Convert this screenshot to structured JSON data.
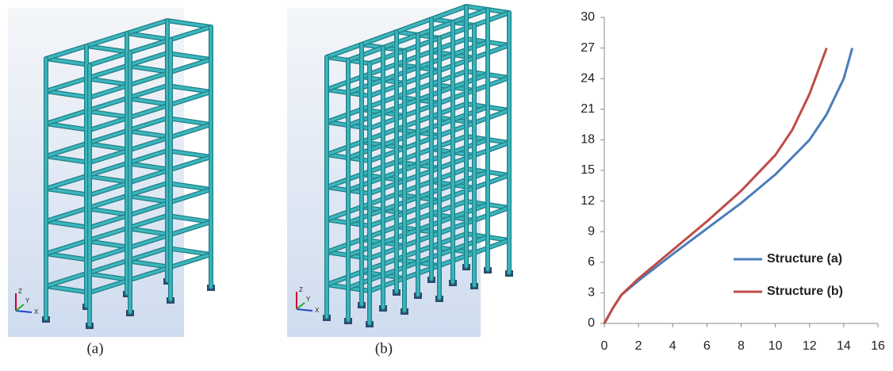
{
  "panels": [
    {
      "caption": "(a)",
      "axis_labels": [
        "Z",
        "Y",
        "X"
      ]
    },
    {
      "caption": "(b)",
      "axis_labels": [
        "Z",
        "Y",
        "X"
      ]
    }
  ],
  "chart_data": {
    "type": "line",
    "series": [
      {
        "name": "Structure (a)",
        "color": "#4a7ebb",
        "x": [
          0,
          0.5,
          1,
          2,
          4,
          6,
          8,
          10,
          12,
          13,
          14,
          14.5
        ],
        "values": [
          0,
          1.5,
          2.8,
          4.2,
          6.8,
          9.3,
          11.8,
          14.6,
          18,
          20.5,
          24,
          27
        ]
      },
      {
        "name": "Structure (b)",
        "color": "#be4b48",
        "x": [
          0,
          0.5,
          1,
          2,
          4,
          6,
          8,
          10,
          11,
          12,
          13
        ],
        "values": [
          0,
          1.5,
          2.8,
          4.4,
          7.2,
          10,
          13,
          16.5,
          19,
          22.5,
          27
        ]
      }
    ],
    "xlim": [
      0,
      16
    ],
    "xticks": [
      0,
      2,
      4,
      6,
      8,
      10,
      12,
      14,
      16
    ],
    "ylim": [
      0,
      30
    ],
    "yticks": [
      0,
      3,
      6,
      9,
      12,
      15,
      18,
      21,
      24,
      27,
      30
    ],
    "grid": false,
    "legend": "right"
  }
}
